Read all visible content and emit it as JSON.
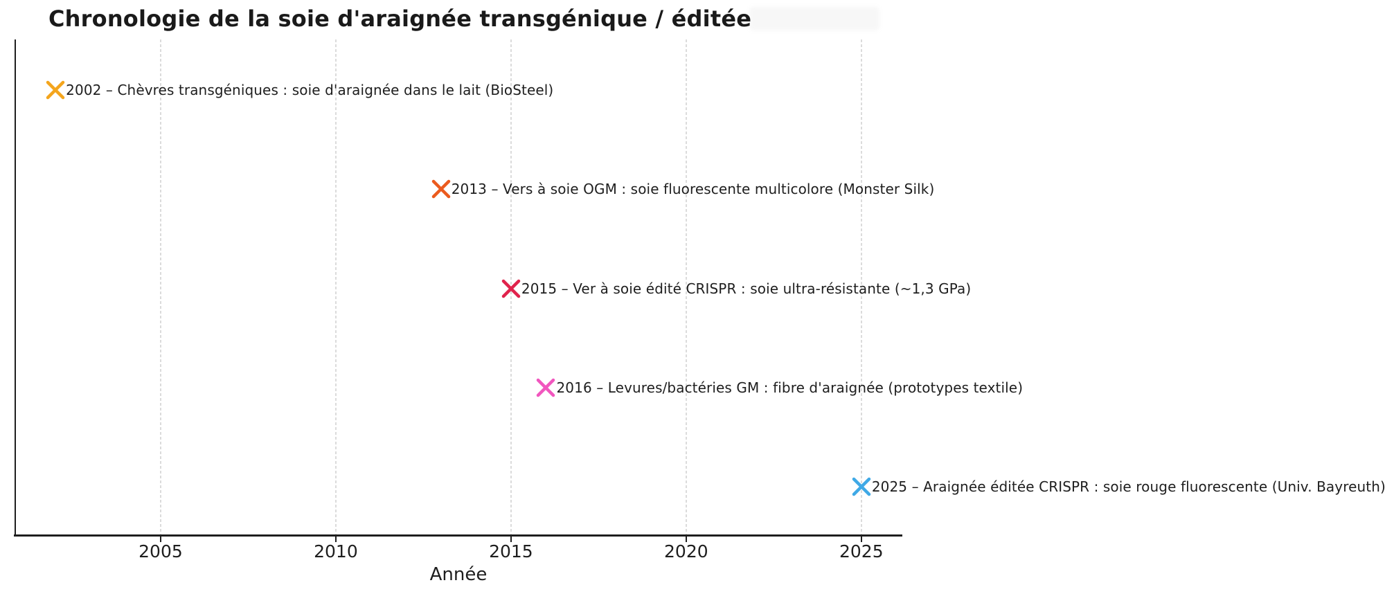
{
  "header": {
    "title": "Chronologie de la soie d'araignée transgénique / éditée"
  },
  "colors": {
    "background": "#ffffff",
    "text": "#1e1e1e",
    "title": "#1a1a1a",
    "grid": "#dbdbdb",
    "spine": "#1e1e1e"
  },
  "chart_data": {
    "type": "scatter",
    "title": "Chronologie de la soie d'araignée transgénique / éditée",
    "xlabel": "Année",
    "ylabel": "",
    "marker": "x",
    "grid": "vertical-dashed",
    "legend": "none",
    "xlim": [
      2000.85,
      2026.15
    ],
    "xticks": [
      2005,
      2010,
      2015,
      2020,
      2025
    ],
    "xtick_labels": [
      "2005",
      "2010",
      "2015",
      "2020",
      "2025"
    ],
    "events": [
      {
        "year": 2002,
        "label": "2002 – Chèvres transgéniques : soie d'araignée dans le lait (BioSteel)",
        "color": "#F4A51C"
      },
      {
        "year": 2013,
        "label": "2013 – Vers à soie OGM : soie fluorescente multicolore (Monster Silk)",
        "color": "#EB5B1E"
      },
      {
        "year": 2015,
        "label": "2015 – Ver à soie édité CRISPR : soie ultra-résistante (~1,3 GPa)",
        "color": "#E0234C"
      },
      {
        "year": 2016,
        "label": "2016 – Levures/bactéries GM : fibre d'araignée (prototypes textile)",
        "color": "#F156BE"
      },
      {
        "year": 2025,
        "label": "2025 – Araignée éditée CRISPR : soie rouge fluorescente (Univ. Bayreuth)",
        "color": "#3FA9E6"
      }
    ]
  }
}
